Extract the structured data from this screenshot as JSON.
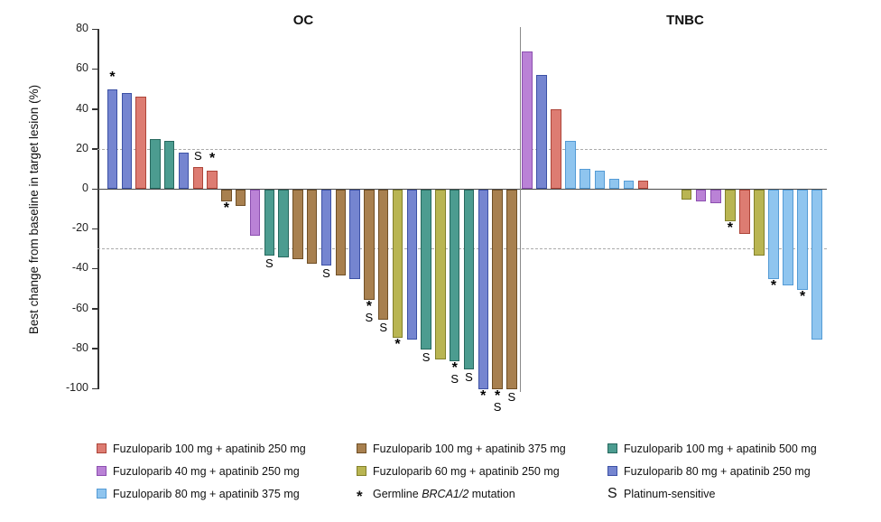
{
  "figure": {
    "y_axis_label": "Best change from baseline in target lesion (%)",
    "group_titles": [
      "OC",
      "TNBC"
    ]
  },
  "palette": {
    "red": {
      "fill": "#DD7C72",
      "stroke": "#AD4438"
    },
    "brown": {
      "fill": "#A8804F",
      "stroke": "#6F4F26"
    },
    "teal": {
      "fill": "#4C9C90",
      "stroke": "#27685E"
    },
    "orchid": {
      "fill": "#BA82D6",
      "stroke": "#8C4FB0"
    },
    "yellow": {
      "fill": "#B9B552",
      "stroke": "#82802B"
    },
    "indigo": {
      "fill": "#7585D0",
      "stroke": "#3C51A5"
    },
    "lightblue": {
      "fill": "#8FC5EF",
      "stroke": "#549BD5"
    }
  },
  "chart_data": {
    "type": "bar",
    "subtype": "waterfall",
    "title": "",
    "xlabel": "",
    "ylabel": "Best change from baseline in target lesion (%)",
    "ylim": [
      -100,
      80
    ],
    "yticks": [
      80,
      60,
      40,
      20,
      0,
      -20,
      -40,
      -60,
      -80,
      -100
    ],
    "reference_lines": [
      20,
      -30
    ],
    "grid": false,
    "legend_position": "bottom",
    "annotation_meaning": {
      "*": "Germline BRCA1/2 mutation",
      "S": "Platinum-sensitive"
    },
    "groups": [
      {
        "label": "OC",
        "bars": [
          {
            "value": 50,
            "color": "indigo",
            "ann": "*"
          },
          {
            "value": 48,
            "color": "indigo",
            "ann": ""
          },
          {
            "value": 46,
            "color": "red",
            "ann": ""
          },
          {
            "value": 25,
            "color": "teal",
            "ann": ""
          },
          {
            "value": 24,
            "color": "teal",
            "ann": ""
          },
          {
            "value": 18,
            "color": "indigo",
            "ann": ""
          },
          {
            "value": 11,
            "color": "red",
            "ann": "S"
          },
          {
            "value": 9,
            "color": "red",
            "ann": "*"
          },
          {
            "value": -6,
            "color": "brown",
            "ann": "*"
          },
          {
            "value": -8,
            "color": "brown",
            "ann": ""
          },
          {
            "value": -23,
            "color": "orchid",
            "ann": ""
          },
          {
            "value": -33,
            "color": "teal",
            "ann": "S"
          },
          {
            "value": -34,
            "color": "teal",
            "ann": ""
          },
          {
            "value": -35,
            "color": "brown",
            "ann": ""
          },
          {
            "value": -37,
            "color": "brown",
            "ann": ""
          },
          {
            "value": -38,
            "color": "indigo",
            "ann": "S"
          },
          {
            "value": -43,
            "color": "brown",
            "ann": ""
          },
          {
            "value": -45,
            "color": "indigo",
            "ann": ""
          },
          {
            "value": -55,
            "color": "brown",
            "ann": "*S"
          },
          {
            "value": -65,
            "color": "brown",
            "ann": "S"
          },
          {
            "value": -74,
            "color": "yellow",
            "ann": "*"
          },
          {
            "value": -75,
            "color": "indigo",
            "ann": ""
          },
          {
            "value": -80,
            "color": "teal",
            "ann": "S"
          },
          {
            "value": -85,
            "color": "yellow",
            "ann": ""
          },
          {
            "value": -86,
            "color": "teal",
            "ann": "*S"
          },
          {
            "value": -90,
            "color": "teal",
            "ann": "S"
          },
          {
            "value": -100,
            "color": "indigo",
            "ann": "*"
          },
          {
            "value": -100,
            "color": "brown",
            "ann": "*S"
          },
          {
            "value": -100,
            "color": "brown",
            "ann": "S"
          }
        ]
      },
      {
        "label": "TNBC",
        "bars": [
          {
            "value": 69,
            "color": "orchid",
            "ann": ""
          },
          {
            "value": 57,
            "color": "indigo",
            "ann": ""
          },
          {
            "value": 40,
            "color": "red",
            "ann": ""
          },
          {
            "value": 24,
            "color": "lightblue",
            "ann": ""
          },
          {
            "value": 10,
            "color": "lightblue",
            "ann": ""
          },
          {
            "value": 9,
            "color": "lightblue",
            "ann": ""
          },
          {
            "value": 5,
            "color": "lightblue",
            "ann": ""
          },
          {
            "value": 4,
            "color": "lightblue",
            "ann": ""
          },
          {
            "value": 4,
            "color": "red",
            "ann": ""
          },
          {
            "value": 0,
            "color": null,
            "ann": ""
          },
          {
            "value": 0,
            "color": null,
            "ann": ""
          },
          {
            "value": -5,
            "color": "yellow",
            "ann": ""
          },
          {
            "value": -6,
            "color": "orchid",
            "ann": ""
          },
          {
            "value": -7,
            "color": "orchid",
            "ann": ""
          },
          {
            "value": -16,
            "color": "yellow",
            "ann": "*"
          },
          {
            "value": -22,
            "color": "red",
            "ann": ""
          },
          {
            "value": -33,
            "color": "yellow",
            "ann": ""
          },
          {
            "value": -45,
            "color": "lightblue",
            "ann": "*"
          },
          {
            "value": -48,
            "color": "lightblue",
            "ann": ""
          },
          {
            "value": -50,
            "color": "lightblue",
            "ann": "*"
          },
          {
            "value": -75,
            "color": "lightblue",
            "ann": ""
          }
        ]
      }
    ]
  },
  "legend": {
    "items": [
      {
        "type": "swatch",
        "color": "red",
        "label": "Fuzuloparib 100 mg + apatinib 250 mg"
      },
      {
        "type": "swatch",
        "color": "brown",
        "label": "Fuzuloparib 100 mg + apatinib 375 mg"
      },
      {
        "type": "swatch",
        "color": "teal",
        "label": "Fuzuloparib 100 mg + apatinib 500 mg"
      },
      {
        "type": "swatch",
        "color": "orchid",
        "label": "Fuzuloparib 40 mg + apatinib 250 mg"
      },
      {
        "type": "swatch",
        "color": "yellow",
        "label": "Fuzuloparib 60 mg + apatinib 250 mg"
      },
      {
        "type": "swatch",
        "color": "indigo",
        "label": "Fuzuloparib 80 mg + apatinib 250 mg"
      },
      {
        "type": "swatch",
        "color": "lightblue",
        "label": "Fuzuloparib 80 mg + apatinib 375 mg"
      },
      {
        "type": "symbol",
        "symbol": "*",
        "label_prefix": "Germline ",
        "label_italic": "BRCA1/2",
        "label_suffix": " mutation"
      },
      {
        "type": "symbol",
        "symbol": "S",
        "label": "Platinum-sensitive"
      }
    ]
  }
}
